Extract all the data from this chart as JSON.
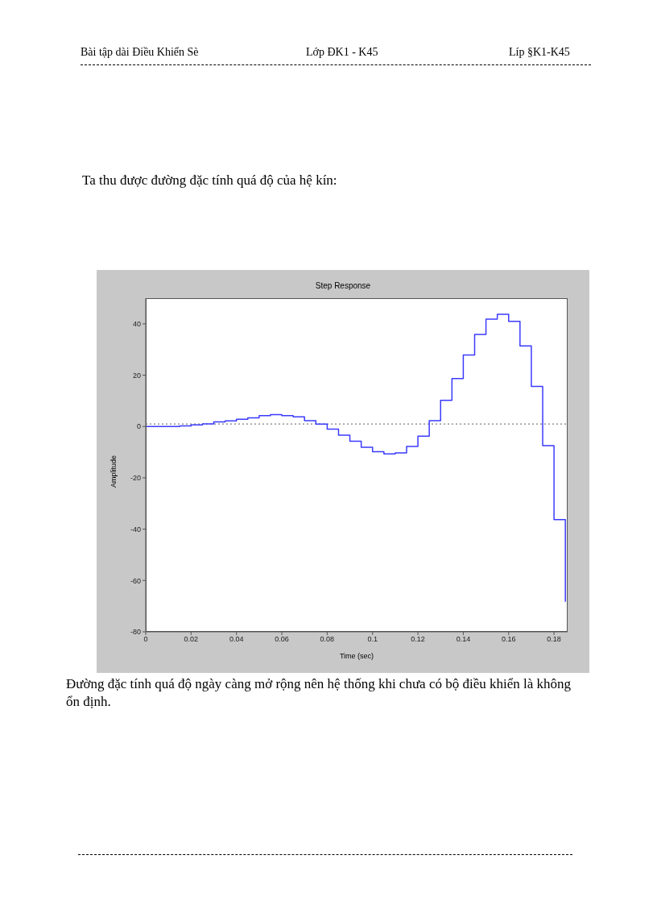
{
  "chart_data": {
    "type": "step",
    "title": "Step Response",
    "xlabel": "Time (sec)",
    "ylabel": "Amplitude",
    "annotations": [
      "Bài tập dài Điều Khiển Sè",
      "Lớp ĐK1 - K45",
      "Líp §K1-K45",
      "Ta thu được đường đặc tính quá độ của hệ kín:",
      "Đường đặc tính quá độ ngày càng mở rộng nên hệ thống khi chưa có bộ điều khiển là không ổn định."
    ],
    "x": [
      0,
      0.005,
      0.01,
      0.015,
      0.02,
      0.025,
      0.03,
      0.035,
      0.04,
      0.045,
      0.05,
      0.055,
      0.06,
      0.065,
      0.07,
      0.075,
      0.08,
      0.085,
      0.09,
      0.095,
      0.1,
      0.105,
      0.11,
      0.115,
      0.12,
      0.125,
      0.13,
      0.135,
      0.14,
      0.145,
      0.15,
      0.155,
      0.16,
      0.165,
      0.17,
      0.175,
      0.18,
      0.185
    ],
    "series": [
      {
        "color": "#3b3bff",
        "values": [
          0,
          0,
          0,
          0.2,
          0.6,
          1.0,
          1.8,
          2.2,
          2.8,
          3.4,
          4.2,
          4.6,
          4.2,
          3.8,
          2.3,
          0.9,
          -1.0,
          -3.4,
          -5.7,
          -8.1,
          -9.8,
          -10.7,
          -10.3,
          -7.8,
          -3.8,
          2.3,
          10.2,
          18.7,
          27.9,
          35.9,
          41.8,
          43.7,
          41.0,
          31.4,
          15.6,
          -7.5,
          -36.3,
          -68.3
        ]
      }
    ],
    "xlim": [
      0,
      0.186
    ],
    "xticks": [
      0,
      0.02,
      0.04,
      0.06,
      0.08,
      0.1,
      0.12,
      0.14,
      0.16,
      0.18
    ],
    "ylim": [
      -80,
      50
    ],
    "yticks": [
      -80,
      -60,
      -40,
      -20,
      0,
      20,
      40
    ],
    "ref_lines": [
      {
        "axis": "y",
        "value": 1,
        "color": "#808080",
        "line_style": "dotted"
      }
    ],
    "grid": false,
    "legend": false,
    "marker": "none",
    "line_style": "solid"
  }
}
